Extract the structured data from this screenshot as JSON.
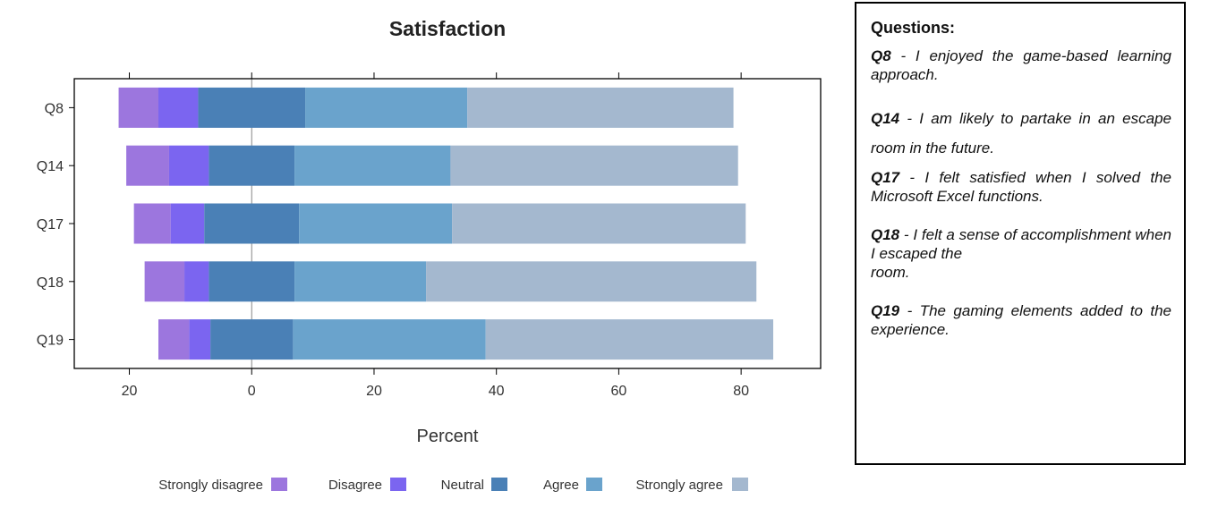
{
  "chart_data": {
    "type": "bar",
    "orientation": "horizontal-diverging",
    "title": "Satisfaction",
    "xlabel": "Percent",
    "ylabel": "",
    "xlim": [
      -29,
      93
    ],
    "xticks": [
      -20,
      0,
      20,
      40,
      60,
      80
    ],
    "xtick_labels": [
      "20",
      "0",
      "20",
      "40",
      "60",
      "80"
    ],
    "ticks_on_top": true,
    "categories": [
      "Q8",
      "Q14",
      "Q17",
      "Q18",
      "Q19"
    ],
    "series": [
      {
        "name": "Strongly disagree",
        "color": "#9c76de",
        "values": [
          6.5,
          7.0,
          6.0,
          6.5,
          5.0
        ]
      },
      {
        "name": "Disagree",
        "color": "#7b65f0",
        "values": [
          6.5,
          6.5,
          5.5,
          4.0,
          3.5
        ]
      },
      {
        "name": "Neutral",
        "color": "#4a80b6",
        "values": [
          17.5,
          14.0,
          15.5,
          14.0,
          13.5
        ]
      },
      {
        "name": "Agree",
        "color": "#6aa3cc",
        "values": [
          26.5,
          25.5,
          25.0,
          21.5,
          31.5
        ]
      },
      {
        "name": "Strongly agree",
        "color": "#a4b8cf",
        "values": [
          43.5,
          47.0,
          48.0,
          54.0,
          47.0
        ]
      }
    ],
    "legend_position": "bottom"
  },
  "questions": {
    "heading": "Questions:",
    "items": [
      {
        "id": "Q8",
        "text": " - I enjoyed the game-based learning approach."
      },
      {
        "id": "Q14",
        "text": " - I am likely to partake in an escape room in the future."
      },
      {
        "id": "Q17",
        "text": " - I felt satisfied when I solved the Microsoft Excel functions."
      },
      {
        "id": "Q18",
        "text": " - I felt a sense of accomplishment when I escaped the\nroom."
      },
      {
        "id": "Q19",
        "text": " - The gaming elements added to the experience."
      }
    ]
  }
}
